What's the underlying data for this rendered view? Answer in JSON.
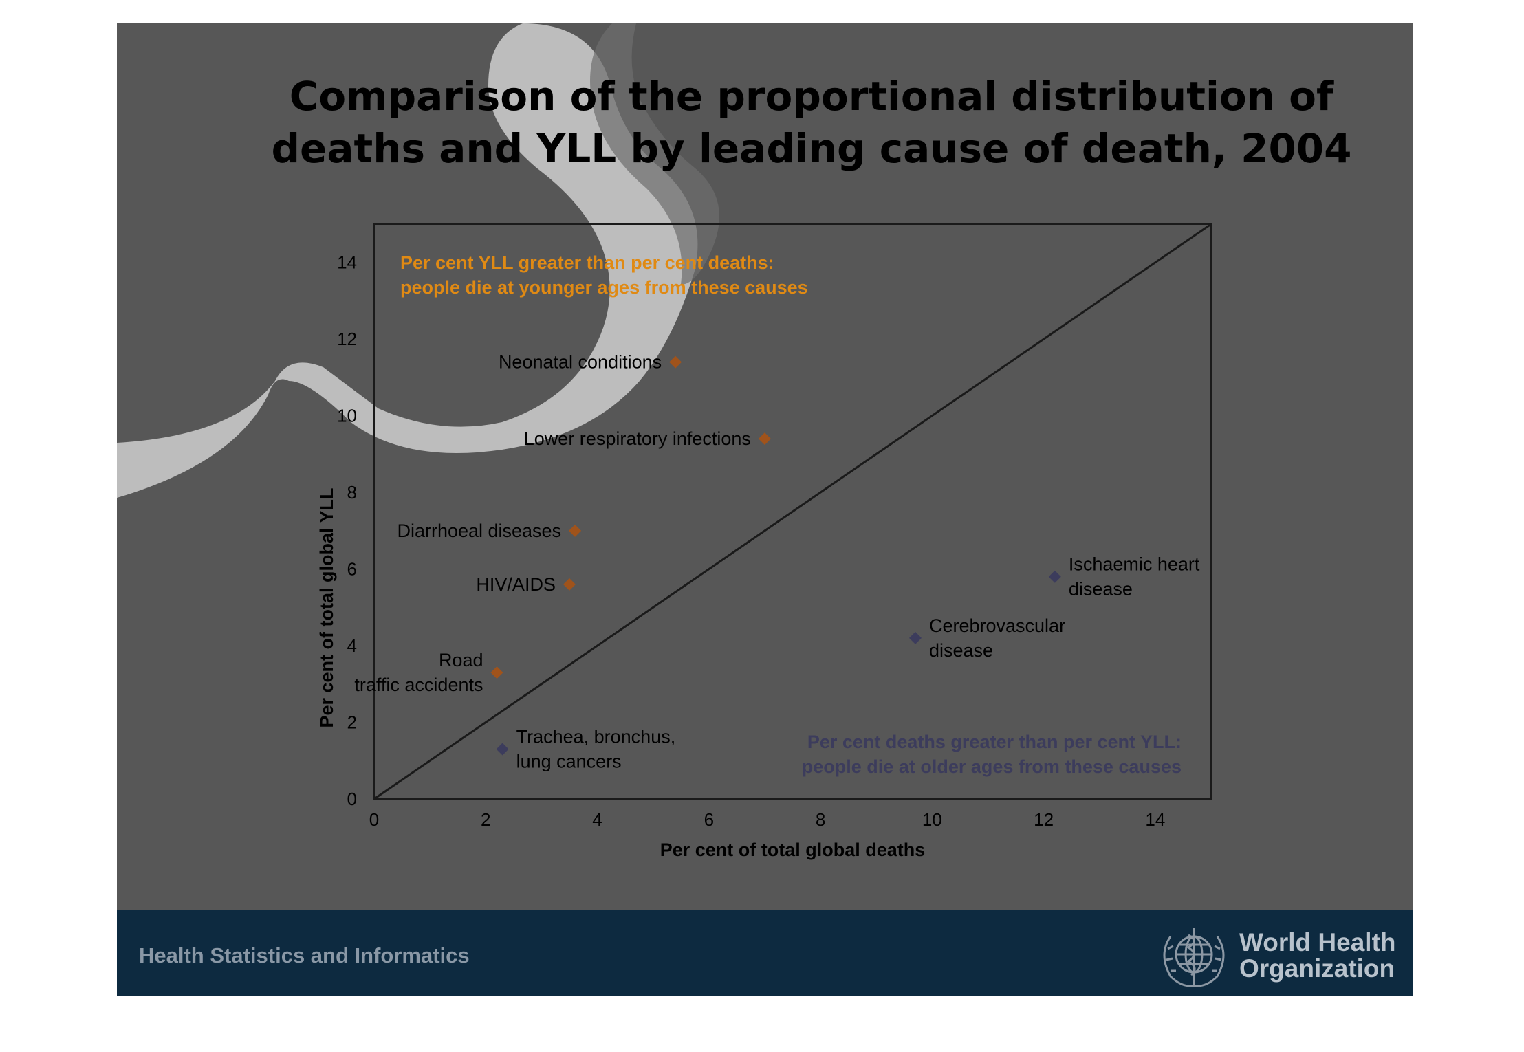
{
  "slide": {
    "title_lines": [
      "Comparison of the proportional distribution of",
      "deaths and YLL by leading cause of death, 2004"
    ],
    "footer_text": "Health Statistics and Informatics",
    "org_name_lines": [
      "World Health",
      "Organization"
    ],
    "org_logo_icon": "who-emblem-icon"
  },
  "colors": {
    "slide_bg": "#575757",
    "footer_bg": "#0d2a40",
    "above_diagonal": "#a0531b",
    "below_diagonal": "#3c3c5c",
    "annotation_above": "#e08a14",
    "annotation_below": "#3c3c5c"
  },
  "chart_data": {
    "type": "scatter",
    "xlabel": "Per cent of total global deaths",
    "ylabel": "Per cent of total global YLL",
    "xlim": [
      0,
      15
    ],
    "ylim": [
      0,
      15
    ],
    "xticks": [
      0,
      2,
      4,
      6,
      8,
      10,
      12,
      14
    ],
    "yticks": [
      0,
      2,
      4,
      6,
      8,
      10,
      12,
      14
    ],
    "grid": false,
    "reference_line": {
      "from": [
        0,
        0
      ],
      "to": [
        15,
        15
      ]
    },
    "annotations": [
      {
        "group": "above",
        "lines": [
          "Per cent YLL greater than per cent deaths:",
          "people die at younger ages from these causes"
        ]
      },
      {
        "group": "below",
        "lines": [
          "Per cent deaths greater than per cent YLL:",
          "people die at older ages from these causes"
        ]
      }
    ],
    "points": [
      {
        "label_lines": [
          "Neonatal conditions"
        ],
        "x": 5.4,
        "y": 11.4,
        "group": "above",
        "label_side": "left"
      },
      {
        "label_lines": [
          "Lower respiratory infections"
        ],
        "x": 7.0,
        "y": 9.4,
        "group": "above",
        "label_side": "left"
      },
      {
        "label_lines": [
          "Diarrhoeal diseases"
        ],
        "x": 3.6,
        "y": 7.0,
        "group": "above",
        "label_side": "left"
      },
      {
        "label_lines": [
          "HIV/AIDS"
        ],
        "x": 3.5,
        "y": 5.6,
        "group": "above",
        "label_side": "left"
      },
      {
        "label_lines": [
          "Road",
          "traffic accidents"
        ],
        "x": 2.2,
        "y": 3.3,
        "group": "above",
        "label_side": "left"
      },
      {
        "label_lines": [
          "Trachea, bronchus,",
          "lung cancers"
        ],
        "x": 2.3,
        "y": 1.3,
        "group": "below",
        "label_side": "right"
      },
      {
        "label_lines": [
          "Cerebrovascular",
          "disease"
        ],
        "x": 9.7,
        "y": 4.2,
        "group": "below",
        "label_side": "right"
      },
      {
        "label_lines": [
          "Ischaemic heart",
          "disease"
        ],
        "x": 12.2,
        "y": 5.8,
        "group": "below",
        "label_side": "right"
      }
    ]
  }
}
